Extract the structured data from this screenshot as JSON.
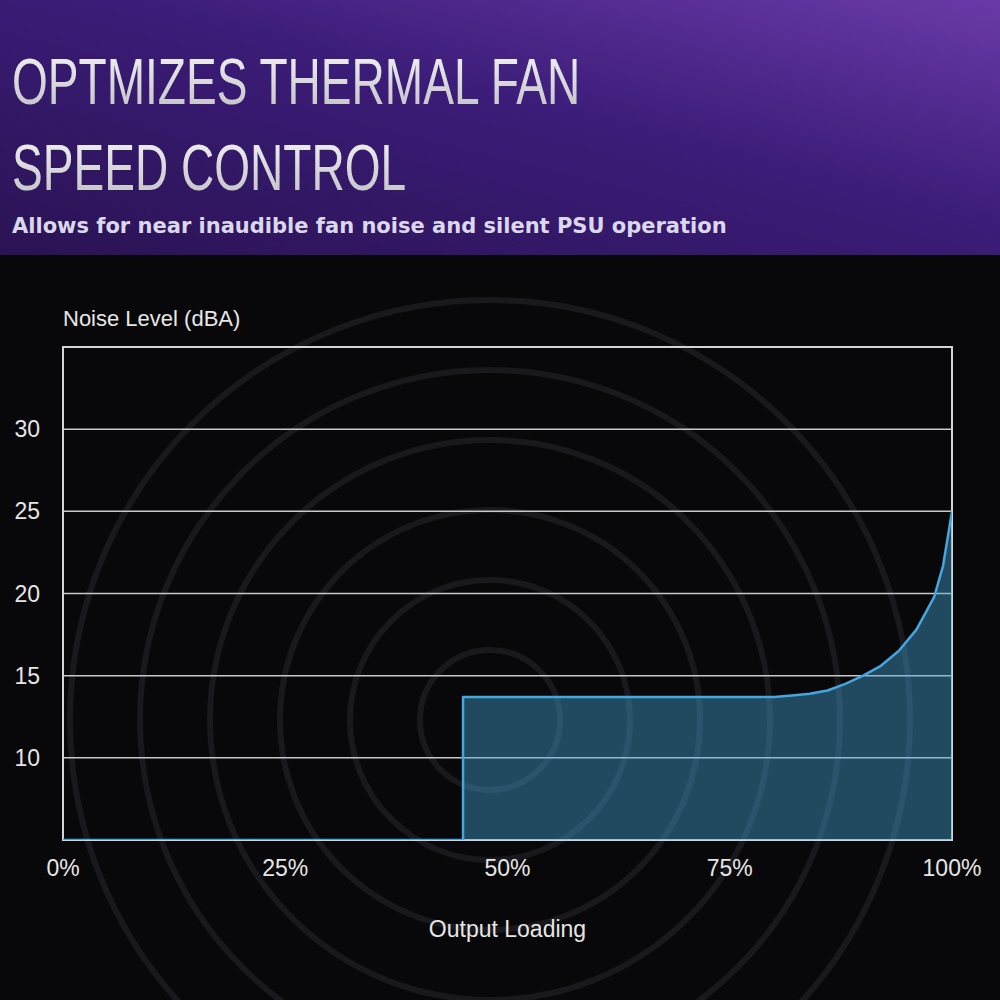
{
  "chart_data": {
    "type": "area",
    "title": "OPTMIZES THERMAL FAN SPEED CONTROL",
    "subtitle": "Allows for near inaudible fan noise and silent PSU operation",
    "y_label": "Noise Level (dBA)",
    "x_label": "Output Loading",
    "x": [
      0,
      45,
      45,
      50,
      55,
      60,
      65,
      70,
      75,
      78,
      80,
      82,
      84,
      86,
      88,
      90,
      92,
      94,
      96,
      98,
      99,
      100
    ],
    "values": [
      5,
      5,
      13.7,
      13.7,
      13.7,
      13.7,
      13.7,
      13.7,
      13.7,
      13.7,
      13.7,
      13.8,
      13.9,
      14.1,
      14.5,
      15,
      15.6,
      16.5,
      17.8,
      19.8,
      21.7,
      25
    ],
    "color": "#45a6dc",
    "xlim": [
      0,
      100
    ],
    "ylim": [
      5,
      35
    ],
    "xticks": [
      {
        "value": 0,
        "label": "0%"
      },
      {
        "value": 25,
        "label": "25%"
      },
      {
        "value": 50,
        "label": "50%"
      },
      {
        "value": 75,
        "label": "75%"
      },
      {
        "value": 100,
        "label": "100%"
      }
    ],
    "yticks": [
      10,
      15,
      20,
      25,
      30
    ],
    "grid": true
  }
}
